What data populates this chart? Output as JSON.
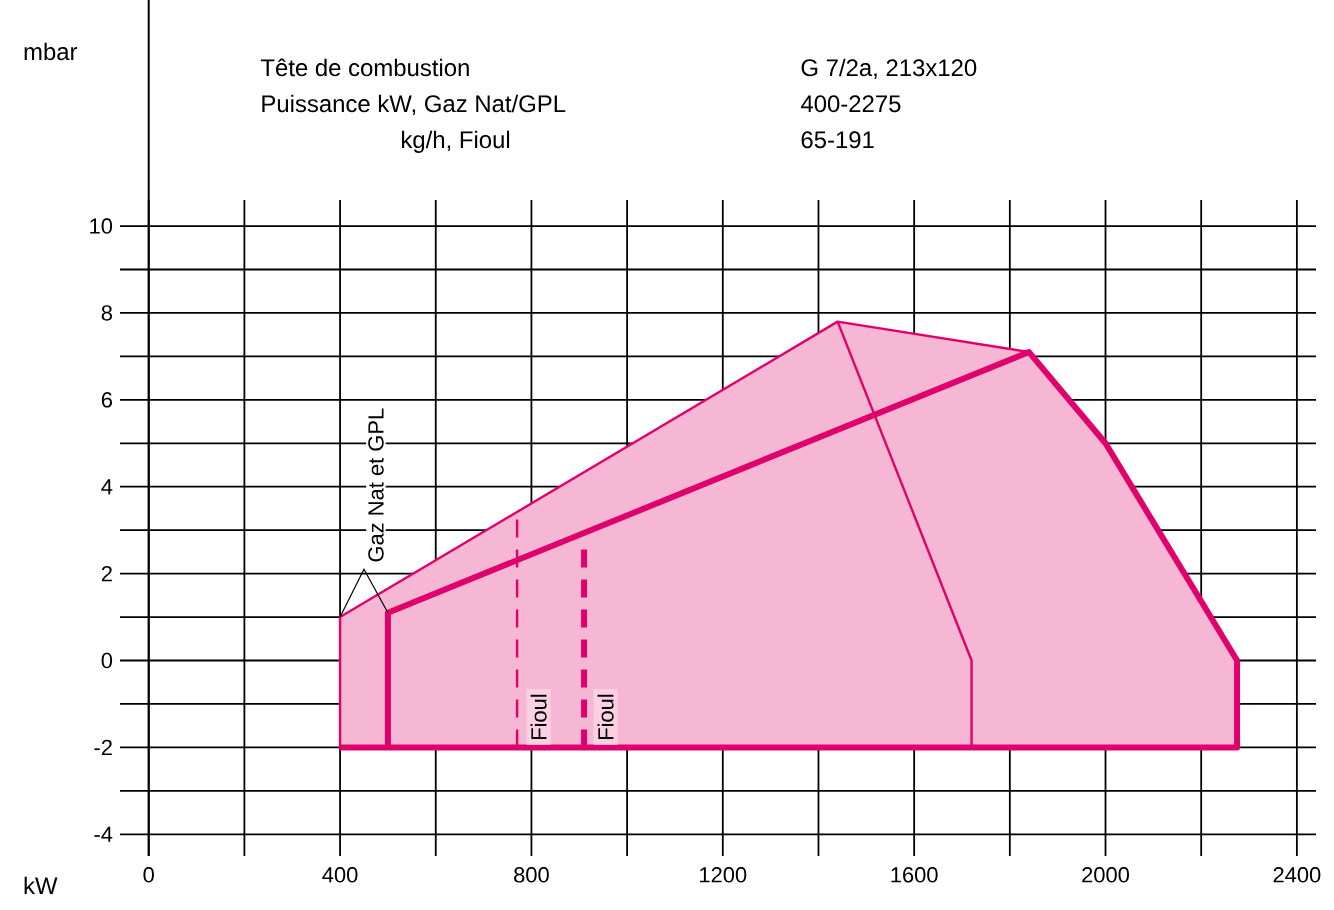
{
  "chart_data": {
    "type": "line",
    "xlabel": "kW",
    "xlim": [
      -60,
      2440
    ],
    "ylim": [
      -4.5,
      10.6
    ],
    "xticks": [
      0,
      {
        "value": 200,
        "label": null
      },
      400,
      {
        "value": 600,
        "label": null
      },
      800,
      {
        "value": 1000,
        "label": null
      },
      1200,
      {
        "value": 1400,
        "label": null
      },
      1600,
      {
        "value": 1800,
        "label": null
      },
      2000,
      {
        "value": 2200,
        "label": null
      },
      2400
    ],
    "yticks": [
      -4,
      {
        "value": -3,
        "label": null
      },
      -2,
      {
        "value": -1,
        "label": null
      },
      0,
      {
        "value": 1,
        "label": null
      },
      2,
      {
        "value": 3,
        "label": null
      },
      4,
      {
        "value": 5,
        "label": null
      },
      6,
      {
        "value": 7,
        "label": null
      },
      8,
      {
        "value": 9,
        "label": null
      },
      10
    ],
    "grid": true,
    "series": [
      {
        "type": "area",
        "color": "#e0006c",
        "x": [
          400,
          400,
          1440,
          1840,
          2000,
          2275,
          2275
        ],
        "values": [
          -2,
          1,
          7.8,
          7.1,
          5,
          0,
          -2
        ]
      },
      {
        "color": "#e0006c",
        "x": [
          500,
          500,
          1840,
          2000,
          2275,
          2275,
          400
        ],
        "values": [
          -2,
          1.1,
          7.1,
          5,
          0,
          -2,
          -2
        ]
      },
      {
        "color": "#e0006c",
        "x": [
          1440,
          1720,
          1720
        ],
        "values": [
          7.8,
          0,
          -2
        ]
      },
      {
        "color": "#e0006c",
        "line_style": "dashed",
        "x": [
          770,
          770
        ],
        "values": [
          -2,
          3.4
        ]
      },
      {
        "color": "#e0006c",
        "line_style": "dashed",
        "x": [
          910,
          910
        ],
        "values": [
          -2,
          2.7
        ]
      }
    ],
    "annotations": [
      "Tête de combustion",
      "G 7/2a, 213x120",
      "Puissance kW, Gaz Nat/GPL",
      "400-2275",
      "kg/h, Fioul",
      "65-191",
      {
        "text": "Gaz Nat et GPL",
        "x": 400,
        "y": 1
      },
      {
        "text": "Fioul",
        "x": 770,
        "y": -2
      },
      {
        "text": "Fioul",
        "x": 910,
        "y": -2
      },
      "mbar"
    ]
  }
}
